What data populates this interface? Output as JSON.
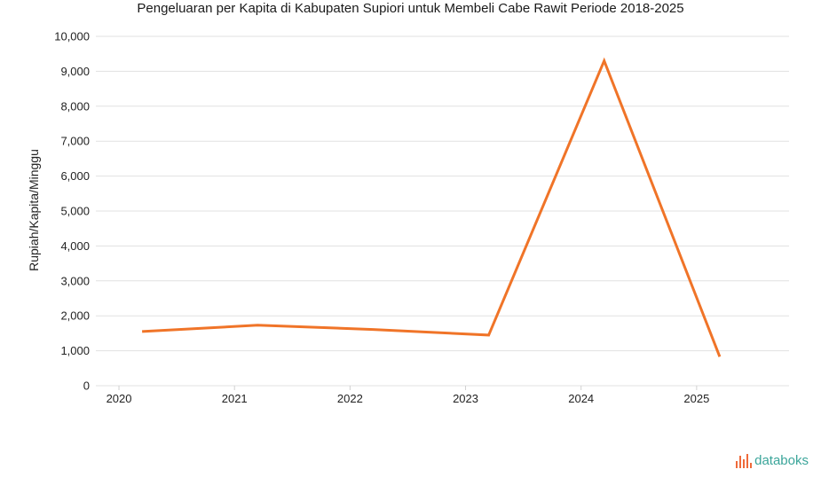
{
  "chart_data": {
    "type": "line",
    "title": "Pengeluaran per Kapita di Kabupaten Supiori untuk Membeli Cabe Rawit Periode 2018-2025",
    "ylabel": "Rupiah/Kapita/Minggu",
    "xlabel": "",
    "categories": [
      "2020",
      "2021",
      "2022",
      "2023",
      "2024",
      "2025"
    ],
    "x": [
      2020.2,
      2021.2,
      2022.2,
      2023.2,
      2024.2,
      2025.2
    ],
    "series": [
      {
        "values": [
          1550,
          1730,
          1610,
          1450,
          9300,
          830
        ],
        "color": "#f07428"
      }
    ],
    "ylim": [
      0,
      10000
    ],
    "yticks": [
      0,
      1000,
      2000,
      3000,
      4000,
      5000,
      6000,
      7000,
      8000,
      9000,
      10000
    ],
    "ytick_labels": [
      "0",
      "1,000",
      "2,000",
      "3,000",
      "4,000",
      "5,000",
      "6,000",
      "7,000",
      "8,000",
      "9,000",
      "10,000"
    ],
    "xlim": [
      2019.8,
      2025.8
    ],
    "grid": true,
    "legend": "none"
  },
  "brand": {
    "name": "databoks",
    "icon": "databoks-logo-icon"
  },
  "colors": {
    "line": "#f07428",
    "grid": "#e1e1e1",
    "brand_text": "#3ba59a",
    "brand_mark": "#ef6a3a"
  }
}
